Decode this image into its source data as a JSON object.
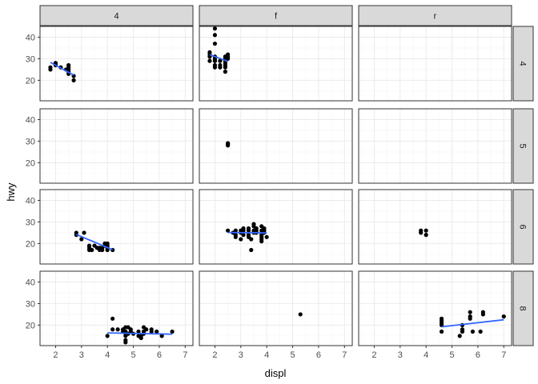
{
  "chart_data": {
    "type": "scatter",
    "facet_cols": [
      "4",
      "f",
      "r"
    ],
    "facet_rows": [
      "4",
      "5",
      "6",
      "8"
    ],
    "xlabel": "displ",
    "ylabel": "hwy",
    "xlim": [
      1.4,
      7.3
    ],
    "ylim": [
      10.5,
      45
    ],
    "x_ticks": [
      2,
      3,
      4,
      5,
      6,
      7
    ],
    "y_ticks": [
      20,
      30,
      40
    ],
    "point_color": "#000000",
    "smooth_color": "#3366ff",
    "grid": true,
    "panels": [
      {
        "row": "4",
        "col": "4",
        "points": [
          [
            1.8,
            26
          ],
          [
            1.8,
            25
          ],
          [
            2.0,
            28
          ],
          [
            2.0,
            27
          ],
          [
            2.0,
            28
          ],
          [
            2.2,
            26
          ],
          [
            2.4,
            25
          ],
          [
            2.5,
            24
          ],
          [
            2.5,
            26
          ],
          [
            2.5,
            27
          ],
          [
            2.5,
            23
          ],
          [
            2.5,
            25
          ],
          [
            2.7,
            22
          ],
          [
            2.7,
            20
          ]
        ],
        "smooth": [
          [
            1.8,
            28.3
          ],
          [
            2.7,
            22.4
          ]
        ]
      },
      {
        "row": "4",
        "col": "f",
        "points": [
          [
            1.8,
            29
          ],
          [
            1.8,
            32
          ],
          [
            1.8,
            33
          ],
          [
            1.8,
            31
          ],
          [
            2.0,
            29
          ],
          [
            2.0,
            31
          ],
          [
            2.0,
            30
          ],
          [
            2.0,
            26
          ],
          [
            2.0,
            41
          ],
          [
            2.0,
            37
          ],
          [
            2.0,
            44
          ],
          [
            2.0,
            29
          ],
          [
            2.0,
            27
          ],
          [
            2.2,
            26
          ],
          [
            2.2,
            27
          ],
          [
            2.2,
            29
          ],
          [
            2.4,
            27
          ],
          [
            2.4,
            31
          ],
          [
            2.4,
            30
          ],
          [
            2.4,
            28
          ],
          [
            2.4,
            29
          ],
          [
            2.4,
            24
          ],
          [
            2.4,
            26
          ],
          [
            2.5,
            30
          ],
          [
            2.5,
            31
          ],
          [
            2.5,
            32
          ]
        ],
        "smooth": [
          [
            1.8,
            31.9
          ],
          [
            2.5,
            28.8
          ]
        ]
      },
      {
        "row": "4",
        "col": "r",
        "points": [],
        "smooth": []
      },
      {
        "row": "5",
        "col": "4",
        "points": [],
        "smooth": []
      },
      {
        "row": "5",
        "col": "f",
        "points": [
          [
            2.5,
            29
          ],
          [
            2.5,
            28
          ],
          [
            2.5,
            28.5
          ],
          [
            2.5,
            29
          ]
        ],
        "smooth": []
      },
      {
        "row": "5",
        "col": "r",
        "points": [],
        "smooth": []
      },
      {
        "row": "6",
        "col": "4",
        "points": [
          [
            2.8,
            25
          ],
          [
            2.8,
            24
          ],
          [
            3.0,
            22
          ],
          [
            3.1,
            25
          ],
          [
            3.3,
            17
          ],
          [
            3.3,
            18
          ],
          [
            3.3,
            19
          ],
          [
            3.4,
            17
          ],
          [
            3.5,
            19
          ],
          [
            3.6,
            18
          ],
          [
            3.7,
            17
          ],
          [
            3.7,
            18
          ],
          [
            3.8,
            18
          ],
          [
            3.8,
            17
          ],
          [
            3.9,
            19
          ],
          [
            3.9,
            20
          ],
          [
            4.0,
            17
          ],
          [
            4.0,
            18
          ],
          [
            4.0,
            19
          ],
          [
            4.0,
            20
          ],
          [
            4.2,
            17
          ]
        ],
        "smooth": [
          [
            2.8,
            24.2
          ],
          [
            4.2,
            17.1
          ]
        ]
      },
      {
        "row": "6",
        "col": "f",
        "points": [
          [
            2.5,
            26
          ],
          [
            2.7,
            25
          ],
          [
            2.8,
            26
          ],
          [
            2.8,
            24
          ],
          [
            2.8,
            23
          ],
          [
            3.0,
            26
          ],
          [
            3.0,
            25
          ],
          [
            3.0,
            22
          ],
          [
            3.1,
            26
          ],
          [
            3.1,
            24
          ],
          [
            3.1,
            27
          ],
          [
            3.3,
            24
          ],
          [
            3.3,
            23
          ],
          [
            3.3,
            26
          ],
          [
            3.3,
            27
          ],
          [
            3.4,
            17
          ],
          [
            3.4,
            22
          ],
          [
            3.5,
            26
          ],
          [
            3.5,
            25
          ],
          [
            3.5,
            28
          ],
          [
            3.5,
            29
          ],
          [
            3.6,
            26
          ],
          [
            3.6,
            25
          ],
          [
            3.6,
            27
          ],
          [
            3.8,
            28
          ],
          [
            3.8,
            26
          ],
          [
            3.8,
            24
          ],
          [
            3.8,
            22
          ],
          [
            3.8,
            23
          ],
          [
            3.8,
            21
          ],
          [
            3.9,
            27
          ],
          [
            3.9,
            26
          ],
          [
            3.9,
            25
          ],
          [
            4.0,
            23
          ]
        ],
        "smooth": [
          [
            2.5,
            25.1
          ],
          [
            4.0,
            24.9
          ]
        ]
      },
      {
        "row": "6",
        "col": "r",
        "points": [
          [
            3.8,
            26
          ],
          [
            3.8,
            25
          ],
          [
            4.0,
            24
          ],
          [
            4.0,
            26
          ]
        ],
        "smooth": []
      },
      {
        "row": "8",
        "col": "4",
        "points": [
          [
            4.0,
            15
          ],
          [
            4.2,
            23
          ],
          [
            4.2,
            18
          ],
          [
            4.4,
            18
          ],
          [
            4.6,
            18
          ],
          [
            4.6,
            17
          ],
          [
            4.7,
            19
          ],
          [
            4.7,
            17
          ],
          [
            4.7,
            16
          ],
          [
            4.7,
            15
          ],
          [
            4.7,
            13
          ],
          [
            4.7,
            12
          ],
          [
            4.8,
            16
          ],
          [
            4.8,
            19
          ],
          [
            4.9,
            17
          ],
          [
            4.9,
            18
          ],
          [
            5.0,
            16
          ],
          [
            5.2,
            17
          ],
          [
            5.2,
            15
          ],
          [
            5.3,
            15
          ],
          [
            5.3,
            14
          ],
          [
            5.4,
            19
          ],
          [
            5.4,
            17
          ],
          [
            5.4,
            16
          ],
          [
            5.5,
            18
          ],
          [
            5.7,
            17
          ],
          [
            5.7,
            18
          ],
          [
            5.9,
            17
          ],
          [
            6.1,
            15
          ],
          [
            6.5,
            17
          ]
        ],
        "smooth": [
          [
            4.0,
            16.4
          ],
          [
            6.5,
            15.8
          ]
        ]
      },
      {
        "row": "8",
        "col": "f",
        "points": [
          [
            5.3,
            25
          ]
        ],
        "smooth": []
      },
      {
        "row": "8",
        "col": "r",
        "points": [
          [
            4.6,
            23
          ],
          [
            4.6,
            22
          ],
          [
            4.6,
            21
          ],
          [
            4.6,
            20
          ],
          [
            4.6,
            17
          ],
          [
            5.3,
            15
          ],
          [
            5.4,
            20
          ],
          [
            5.4,
            18
          ],
          [
            5.4,
            17
          ],
          [
            5.7,
            26
          ],
          [
            5.7,
            23
          ],
          [
            5.7,
            24
          ],
          [
            5.8,
            17
          ],
          [
            6.1,
            17
          ],
          [
            6.2,
            26
          ],
          [
            6.2,
            25
          ],
          [
            7.0,
            24
          ]
        ],
        "smooth": [
          [
            4.6,
            19.2
          ],
          [
            7.0,
            22.5
          ]
        ]
      }
    ]
  }
}
